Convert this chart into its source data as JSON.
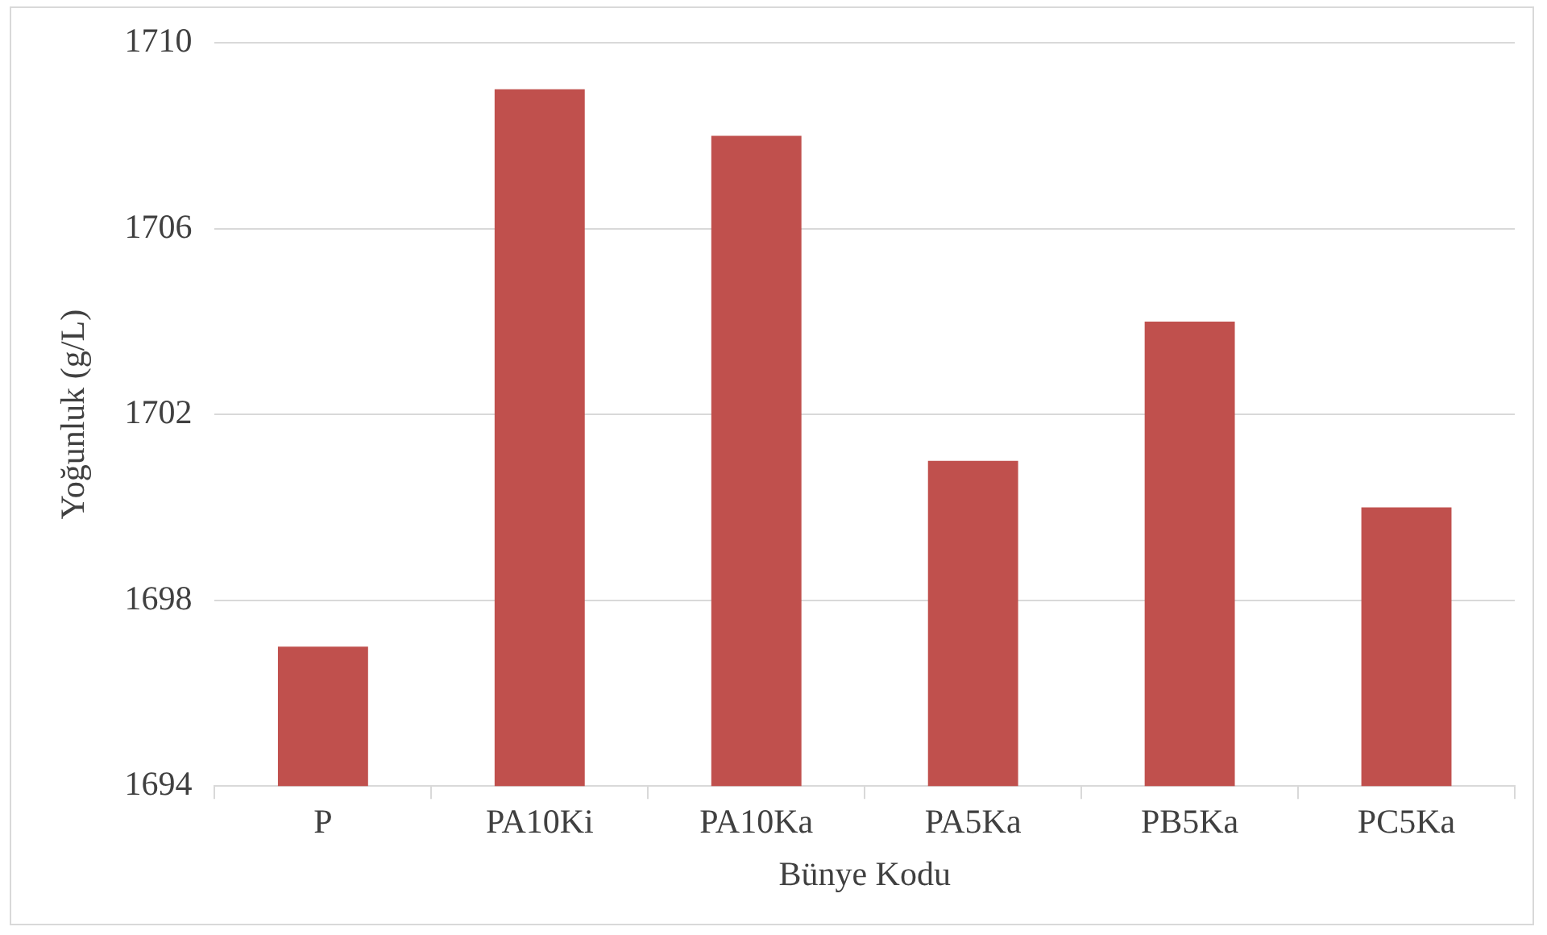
{
  "chart_data": {
    "type": "bar",
    "xlabel": "Bünye Kodu",
    "ylabel": "Yoğunluk (g/L)",
    "categories": [
      "P",
      "PA10Ki",
      "PA10Ka",
      "PA5Ka",
      "PB5Ka",
      "PC5Ka"
    ],
    "values": [
      1697,
      1709,
      1708,
      1701,
      1704,
      1700
    ],
    "color": "#c0504d",
    "ylim": [
      1694,
      1710
    ],
    "yticks": [
      1694,
      1698,
      1702,
      1706,
      1710
    ],
    "grid": "y",
    "legend": false
  }
}
